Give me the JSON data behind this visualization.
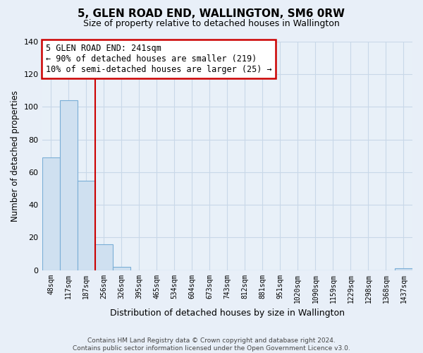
{
  "title": "5, GLEN ROAD END, WALLINGTON, SM6 0RW",
  "subtitle": "Size of property relative to detached houses in Wallington",
  "xlabel": "Distribution of detached houses by size in Wallington",
  "ylabel": "Number of detached properties",
  "bar_labels": [
    "48sqm",
    "117sqm",
    "187sqm",
    "256sqm",
    "326sqm",
    "395sqm",
    "465sqm",
    "534sqm",
    "604sqm",
    "673sqm",
    "743sqm",
    "812sqm",
    "881sqm",
    "951sqm",
    "1020sqm",
    "1090sqm",
    "1159sqm",
    "1229sqm",
    "1298sqm",
    "1368sqm",
    "1437sqm"
  ],
  "bar_values": [
    69,
    104,
    55,
    16,
    2,
    0,
    0,
    0,
    0,
    0,
    0,
    0,
    0,
    0,
    0,
    0,
    0,
    0,
    0,
    0,
    1
  ],
  "bar_color": "#cfe0f0",
  "bar_edge_color": "#7aaed6",
  "vline_color": "#cc0000",
  "annotation_text": "5 GLEN ROAD END: 241sqm\n← 90% of detached houses are smaller (219)\n10% of semi-detached houses are larger (25) →",
  "annotation_box_color": "#ffffff",
  "annotation_box_edge": "#cc0000",
  "ylim": [
    0,
    140
  ],
  "yticks": [
    0,
    20,
    40,
    60,
    80,
    100,
    120,
    140
  ],
  "grid_color": "#c8d8e8",
  "footnote": "Contains HM Land Registry data © Crown copyright and database right 2024.\nContains public sector information licensed under the Open Government Licence v3.0.",
  "bg_color": "#e8eff8",
  "plot_bg_color": "#e8f0f8"
}
